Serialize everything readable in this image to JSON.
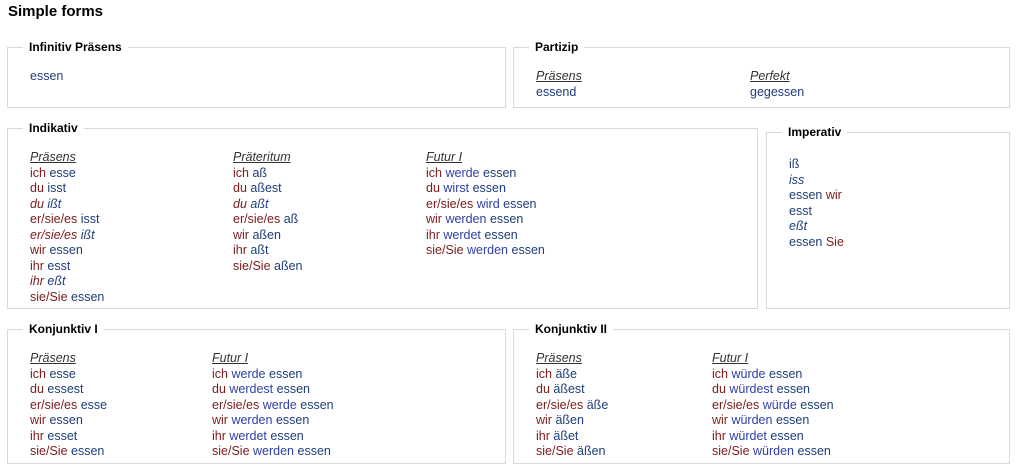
{
  "page_title": "Simple forms",
  "infinitiv": {
    "title": "Infinitiv Präsens",
    "value": "essen"
  },
  "partizip": {
    "title": "Partizip",
    "praesens_header": "Präsens",
    "praesens": "essend",
    "perfekt_header": "Perfekt",
    "perfekt": "gegessen"
  },
  "indikativ": {
    "title": "Indikativ",
    "praesens": {
      "header": "Präsens ",
      "rows": [
        {
          "p": "ich",
          "v": "esse",
          "irr": false
        },
        {
          "p": "du",
          "v": "isst",
          "irr": false
        },
        {
          "p": "du",
          "v": "ißt",
          "irr": true
        },
        {
          "p": "er/sie/es",
          "v": "isst",
          "irr": false
        },
        {
          "p": "er/sie/es",
          "v": "ißt",
          "irr": true
        },
        {
          "p": "wir",
          "v": "essen",
          "irr": false
        },
        {
          "p": "ihr",
          "v": "esst",
          "irr": false
        },
        {
          "p": "ihr",
          "v": "eßt",
          "irr": true
        },
        {
          "p": "sie/Sie",
          "v": "essen",
          "irr": false
        }
      ]
    },
    "praeteritum": {
      "header": "Präteritum",
      "rows": [
        {
          "p": "ich",
          "v": "aß",
          "irr": false
        },
        {
          "p": "du",
          "v": "aßest",
          "irr": false
        },
        {
          "p": "du",
          "v": "aßt",
          "irr": true
        },
        {
          "p": "er/sie/es",
          "v": "aß",
          "irr": false
        },
        {
          "p": "wir",
          "v": "aßen",
          "irr": false
        },
        {
          "p": "ihr",
          "v": "aßt",
          "irr": false
        },
        {
          "p": "sie/Sie",
          "v": "aßen",
          "irr": false
        }
      ]
    },
    "futur": {
      "header": "Futur I",
      "rows": [
        {
          "p": "ich",
          "a": "werde",
          "v": "essen"
        },
        {
          "p": "du",
          "a": "wirst",
          "v": "essen"
        },
        {
          "p": "er/sie/es",
          "a": "wird",
          "v": "essen"
        },
        {
          "p": "wir",
          "a": "werden",
          "v": "essen"
        },
        {
          "p": "ihr",
          "a": "werdet",
          "v": "essen"
        },
        {
          "p": "sie/Sie",
          "a": "werden",
          "v": "essen"
        }
      ]
    }
  },
  "imperativ": {
    "title": "Imperativ",
    "rows": [
      {
        "v": "iß",
        "p": "",
        "irr": false
      },
      {
        "v": "iss",
        "p": "",
        "irr": true
      },
      {
        "v": "essen",
        "p": "wir",
        "irr": false
      },
      {
        "v": "esst",
        "p": "",
        "irr": false
      },
      {
        "v": "eßt",
        "p": "",
        "irr": true
      },
      {
        "v": "essen",
        "p": "Sie",
        "irr": false
      }
    ]
  },
  "konjunktiv1": {
    "title": "Konjunktiv I",
    "praesens": {
      "header": "Präsens ",
      "rows": [
        {
          "p": "ich",
          "v": "esse"
        },
        {
          "p": "du",
          "v": "essest"
        },
        {
          "p": "er/sie/es",
          "v": "esse"
        },
        {
          "p": "wir",
          "v": "essen"
        },
        {
          "p": "ihr",
          "v": "esset"
        },
        {
          "p": "sie/Sie",
          "v": "essen"
        }
      ]
    },
    "futur": {
      "header": "Futur I",
      "rows": [
        {
          "p": "ich",
          "a": "werde",
          "v": "essen"
        },
        {
          "p": "du",
          "a": "werdest",
          "v": "essen"
        },
        {
          "p": "er/sie/es",
          "a": "werde",
          "v": "essen"
        },
        {
          "p": "wir",
          "a": "werden",
          "v": "essen"
        },
        {
          "p": "ihr",
          "a": "werdet",
          "v": "essen"
        },
        {
          "p": "sie/Sie",
          "a": "werden",
          "v": "essen"
        }
      ]
    }
  },
  "konjunktiv2": {
    "title": "Konjunktiv II",
    "praesens": {
      "header": "Präsens ",
      "rows": [
        {
          "p": "ich",
          "v": "äße"
        },
        {
          "p": "du",
          "v": "äßest"
        },
        {
          "p": "er/sie/es",
          "v": "äße"
        },
        {
          "p": "wir",
          "v": "äßen"
        },
        {
          "p": "ihr",
          "v": "äßet"
        },
        {
          "p": "sie/Sie",
          "v": "äßen"
        }
      ]
    },
    "futur": {
      "header": "Futur I",
      "rows": [
        {
          "p": "ich",
          "a": "würde",
          "v": "essen"
        },
        {
          "p": "du",
          "a": "würdest",
          "v": "essen"
        },
        {
          "p": "er/sie/es",
          "a": "würde",
          "v": "essen"
        },
        {
          "p": "wir",
          "a": "würden",
          "v": "essen"
        },
        {
          "p": "ihr",
          "a": "würdet",
          "v": "essen"
        },
        {
          "p": "sie/Sie",
          "a": "würden",
          "v": "essen"
        }
      ]
    }
  }
}
